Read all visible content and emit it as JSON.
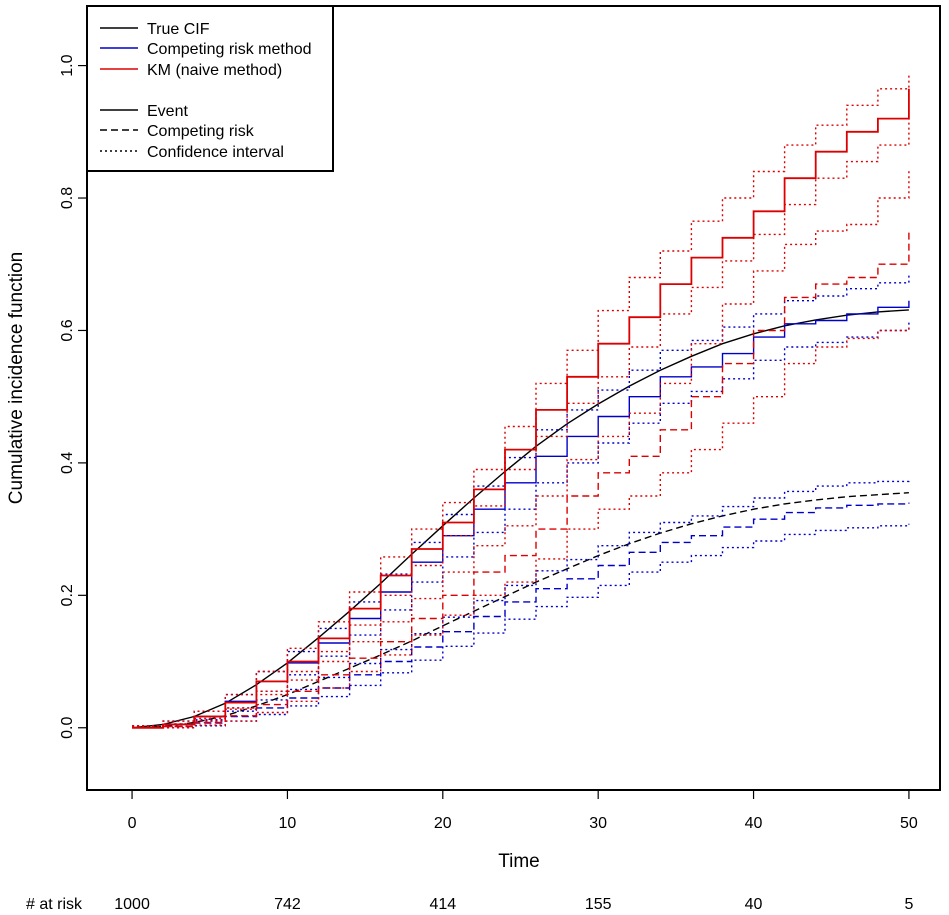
{
  "chart_data": {
    "type": "line",
    "title": "",
    "xlabel": "Time",
    "ylabel": "Cumulative incidence function",
    "xlim": [
      -2.9,
      52
    ],
    "ylim": [
      -0.094,
      1.09
    ],
    "x_ticks": [
      0,
      10,
      20,
      30,
      40,
      50
    ],
    "y_ticks": [
      0.0,
      0.2,
      0.4,
      0.6,
      0.8,
      1.0
    ],
    "x_tick_labels": [
      "0",
      "10",
      "20",
      "30",
      "40",
      "50"
    ],
    "y_tick_labels": [
      "0.0",
      "0.2",
      "0.4",
      "0.6",
      "0.8",
      "1.0"
    ],
    "grid": false,
    "legend": {
      "position": "top-left",
      "entries": [
        {
          "label": "True CIF",
          "color": "#000000",
          "dash": "solid"
        },
        {
          "label": "Competing risk method",
          "color": "#0000cc",
          "dash": "solid"
        },
        {
          "label": "KM (naive method)",
          "color": "#dd0000",
          "dash": "solid"
        },
        {
          "label": "Event",
          "color": "#000000",
          "dash": "solid"
        },
        {
          "label": "Competing risk",
          "color": "#000000",
          "dash": "dashed"
        },
        {
          "label": "Confidence interval",
          "color": "#000000",
          "dash": "dotted"
        }
      ]
    },
    "at_risk": {
      "label": "# at risk",
      "times": [
        0,
        10,
        20,
        30,
        40,
        50
      ],
      "counts": [
        "1000",
        "742",
        "414",
        "155",
        "40",
        "5"
      ]
    },
    "series": [
      {
        "name": "True CIF event",
        "color": "#000000",
        "dash": "solid",
        "step": false,
        "x": [
          0,
          2,
          4,
          6,
          8,
          10,
          12,
          14,
          16,
          18,
          20,
          22,
          24,
          26,
          28,
          30,
          32,
          34,
          36,
          38,
          40,
          42,
          44,
          46,
          48,
          50
        ],
        "y": [
          0.0,
          0.005,
          0.017,
          0.037,
          0.065,
          0.098,
          0.136,
          0.176,
          0.218,
          0.262,
          0.305,
          0.347,
          0.387,
          0.425,
          0.459,
          0.489,
          0.516,
          0.54,
          0.561,
          0.58,
          0.595,
          0.607,
          0.616,
          0.623,
          0.628,
          0.631
        ]
      },
      {
        "name": "True CIF competing risk",
        "color": "#000000",
        "dash": "dashed",
        "step": false,
        "x": [
          0,
          2,
          4,
          6,
          8,
          10,
          12,
          14,
          16,
          18,
          20,
          22,
          24,
          26,
          28,
          30,
          32,
          34,
          36,
          38,
          40,
          42,
          44,
          46,
          48,
          50
        ],
        "y": [
          0.0,
          0.002,
          0.008,
          0.018,
          0.033,
          0.05,
          0.07,
          0.09,
          0.11,
          0.131,
          0.154,
          0.176,
          0.198,
          0.22,
          0.24,
          0.26,
          0.278,
          0.294,
          0.308,
          0.32,
          0.33,
          0.338,
          0.344,
          0.349,
          0.352,
          0.355
        ]
      },
      {
        "name": "Competing risk method event",
        "color": "#0000cc",
        "dash": "solid",
        "step": true,
        "x": [
          0,
          2,
          4,
          6,
          8,
          10,
          12,
          14,
          16,
          18,
          20,
          22,
          24,
          26,
          28,
          30,
          32,
          34,
          36,
          38,
          40,
          42,
          44,
          46,
          48,
          50
        ],
        "y": [
          0.0,
          0.005,
          0.017,
          0.04,
          0.07,
          0.098,
          0.128,
          0.165,
          0.205,
          0.25,
          0.29,
          0.33,
          0.37,
          0.41,
          0.44,
          0.47,
          0.5,
          0.53,
          0.545,
          0.565,
          0.59,
          0.61,
          0.615,
          0.625,
          0.635,
          0.645
        ]
      },
      {
        "name": "Competing risk method event lower CI",
        "color": "#0000cc",
        "dash": "dotted",
        "step": true,
        "x": [
          0,
          2,
          4,
          6,
          8,
          10,
          12,
          14,
          16,
          18,
          20,
          22,
          24,
          26,
          28,
          30,
          32,
          34,
          36,
          38,
          40,
          42,
          44,
          46,
          48,
          50
        ],
        "y": [
          0.0,
          0.002,
          0.01,
          0.03,
          0.055,
          0.08,
          0.108,
          0.14,
          0.178,
          0.22,
          0.258,
          0.295,
          0.33,
          0.37,
          0.4,
          0.43,
          0.46,
          0.49,
          0.508,
          0.527,
          0.555,
          0.575,
          0.582,
          0.59,
          0.6,
          0.612
        ]
      },
      {
        "name": "Competing risk method event upper CI",
        "color": "#0000cc",
        "dash": "dotted",
        "step": true,
        "x": [
          0,
          2,
          4,
          6,
          8,
          10,
          12,
          14,
          16,
          18,
          20,
          22,
          24,
          26,
          28,
          30,
          32,
          34,
          36,
          38,
          40,
          42,
          44,
          46,
          48,
          50
        ],
        "y": [
          0.003,
          0.01,
          0.025,
          0.05,
          0.085,
          0.115,
          0.15,
          0.19,
          0.232,
          0.28,
          0.322,
          0.365,
          0.408,
          0.45,
          0.48,
          0.51,
          0.54,
          0.57,
          0.585,
          0.605,
          0.625,
          0.645,
          0.652,
          0.663,
          0.672,
          0.683
        ]
      },
      {
        "name": "Competing risk method competing risk",
        "color": "#0000cc",
        "dash": "dashed",
        "step": true,
        "x": [
          0,
          2,
          4,
          6,
          8,
          10,
          12,
          14,
          16,
          18,
          20,
          22,
          24,
          26,
          28,
          30,
          32,
          34,
          36,
          38,
          40,
          42,
          44,
          46,
          48,
          50
        ],
        "y": [
          0.0,
          0.002,
          0.007,
          0.017,
          0.03,
          0.045,
          0.06,
          0.08,
          0.1,
          0.122,
          0.145,
          0.168,
          0.19,
          0.21,
          0.225,
          0.245,
          0.265,
          0.28,
          0.29,
          0.303,
          0.315,
          0.325,
          0.332,
          0.336,
          0.338,
          0.34
        ]
      },
      {
        "name": "Competing risk method competing risk lower CI",
        "color": "#0000cc",
        "dash": "dotted",
        "step": true,
        "x": [
          0,
          2,
          4,
          6,
          8,
          10,
          12,
          14,
          16,
          18,
          20,
          22,
          24,
          26,
          28,
          30,
          32,
          34,
          36,
          38,
          40,
          42,
          44,
          46,
          48,
          50
        ],
        "y": [
          0.0,
          0.0,
          0.003,
          0.01,
          0.02,
          0.033,
          0.047,
          0.064,
          0.083,
          0.102,
          0.123,
          0.143,
          0.164,
          0.183,
          0.197,
          0.215,
          0.235,
          0.25,
          0.26,
          0.272,
          0.282,
          0.292,
          0.298,
          0.302,
          0.305,
          0.308
        ]
      },
      {
        "name": "Competing risk method competing risk upper CI",
        "color": "#0000cc",
        "dash": "dotted",
        "step": true,
        "x": [
          0,
          2,
          4,
          6,
          8,
          10,
          12,
          14,
          16,
          18,
          20,
          22,
          24,
          26,
          28,
          30,
          32,
          34,
          36,
          38,
          40,
          42,
          44,
          46,
          48,
          50
        ],
        "y": [
          0.002,
          0.005,
          0.012,
          0.025,
          0.042,
          0.058,
          0.076,
          0.097,
          0.118,
          0.142,
          0.167,
          0.192,
          0.215,
          0.237,
          0.254,
          0.275,
          0.295,
          0.31,
          0.32,
          0.334,
          0.347,
          0.357,
          0.365,
          0.37,
          0.372,
          0.375
        ]
      },
      {
        "name": "KM event",
        "color": "#dd0000",
        "dash": "solid",
        "step": true,
        "x": [
          0,
          2,
          4,
          6,
          8,
          10,
          12,
          14,
          16,
          18,
          20,
          22,
          24,
          26,
          28,
          30,
          32,
          34,
          36,
          38,
          40,
          42,
          44,
          46,
          48,
          50
        ],
        "y": [
          0.0,
          0.005,
          0.017,
          0.038,
          0.07,
          0.1,
          0.135,
          0.18,
          0.23,
          0.27,
          0.31,
          0.36,
          0.42,
          0.48,
          0.53,
          0.58,
          0.62,
          0.67,
          0.71,
          0.74,
          0.78,
          0.83,
          0.87,
          0.9,
          0.92,
          0.965
        ]
      },
      {
        "name": "KM event lower CI",
        "color": "#dd0000",
        "dash": "dotted",
        "step": true,
        "x": [
          0,
          2,
          4,
          6,
          8,
          10,
          12,
          14,
          16,
          18,
          20,
          22,
          24,
          26,
          28,
          30,
          32,
          34,
          36,
          38,
          40,
          42,
          44,
          46,
          48,
          50
        ],
        "y": [
          0.0,
          0.002,
          0.01,
          0.03,
          0.055,
          0.085,
          0.115,
          0.155,
          0.2,
          0.245,
          0.29,
          0.335,
          0.39,
          0.44,
          0.49,
          0.53,
          0.575,
          0.625,
          0.665,
          0.705,
          0.745,
          0.79,
          0.83,
          0.855,
          0.88,
          0.92
        ]
      },
      {
        "name": "KM event upper CI",
        "color": "#dd0000",
        "dash": "dotted",
        "step": true,
        "x": [
          0,
          2,
          4,
          6,
          8,
          10,
          12,
          14,
          16,
          18,
          20,
          22,
          24,
          26,
          28,
          30,
          32,
          34,
          36,
          38,
          40,
          42,
          44,
          46,
          48,
          50
        ],
        "y": [
          0.003,
          0.01,
          0.025,
          0.05,
          0.085,
          0.12,
          0.16,
          0.205,
          0.258,
          0.3,
          0.34,
          0.39,
          0.455,
          0.52,
          0.57,
          0.63,
          0.68,
          0.72,
          0.765,
          0.8,
          0.84,
          0.88,
          0.91,
          0.94,
          0.965,
          0.985
        ]
      },
      {
        "name": "KM competing risk",
        "color": "#dd0000",
        "dash": "dashed",
        "step": true,
        "x": [
          0,
          2,
          4,
          6,
          8,
          10,
          12,
          14,
          16,
          18,
          20,
          22,
          24,
          26,
          28,
          30,
          32,
          34,
          36,
          38,
          40,
          42,
          44,
          46,
          48,
          50
        ],
        "y": [
          0.0,
          0.002,
          0.008,
          0.018,
          0.035,
          0.055,
          0.08,
          0.105,
          0.13,
          0.165,
          0.2,
          0.235,
          0.26,
          0.3,
          0.35,
          0.385,
          0.41,
          0.45,
          0.5,
          0.55,
          0.6,
          0.65,
          0.67,
          0.68,
          0.7,
          0.75
        ]
      },
      {
        "name": "KM competing risk lower CI",
        "color": "#dd0000",
        "dash": "dotted",
        "step": true,
        "x": [
          0,
          2,
          4,
          6,
          8,
          10,
          12,
          14,
          16,
          18,
          20,
          22,
          24,
          26,
          28,
          30,
          32,
          34,
          36,
          38,
          40,
          42,
          44,
          46,
          48,
          50
        ],
        "y": [
          0.0,
          0.0,
          0.004,
          0.01,
          0.023,
          0.04,
          0.06,
          0.085,
          0.11,
          0.14,
          0.17,
          0.2,
          0.22,
          0.255,
          0.3,
          0.33,
          0.35,
          0.385,
          0.42,
          0.46,
          0.5,
          0.55,
          0.575,
          0.588,
          0.6,
          0.605
        ]
      },
      {
        "name": "KM competing risk upper CI",
        "color": "#dd0000",
        "dash": "dotted",
        "step": true,
        "x": [
          0,
          2,
          4,
          6,
          8,
          10,
          12,
          14,
          16,
          18,
          20,
          22,
          24,
          26,
          28,
          30,
          32,
          34,
          36,
          38,
          40,
          42,
          44,
          46,
          48,
          50
        ],
        "y": [
          0.002,
          0.006,
          0.014,
          0.028,
          0.05,
          0.072,
          0.1,
          0.13,
          0.16,
          0.195,
          0.235,
          0.275,
          0.305,
          0.35,
          0.405,
          0.44,
          0.475,
          0.52,
          0.58,
          0.64,
          0.69,
          0.73,
          0.75,
          0.76,
          0.8,
          0.845
        ]
      }
    ]
  }
}
